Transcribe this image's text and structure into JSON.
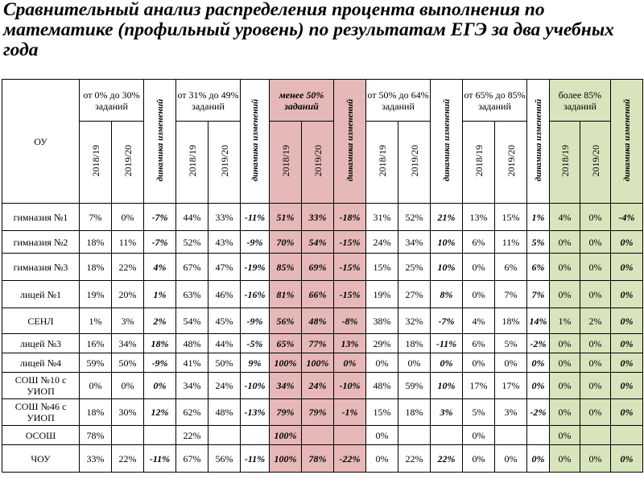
{
  "title": "Сравнительный анализ распределения процента выполнения по математике (профильный уровень) по результатам ЕГЭ за два учебных года",
  "header": {
    "ou": "ОУ",
    "dyn": "динамика изменений",
    "groups": [
      "от 0% до 30% заданий",
      "от 31% до 49% заданий",
      "менее 50% заданий",
      "от 50% до 64% заданий",
      "от 65% до 85% заданий",
      "более 85% заданий"
    ],
    "y1": "2018/19",
    "y2": "2019/20"
  },
  "rows": [
    {
      "name": "гимназия №1",
      "v": [
        "7%",
        "0%",
        "-7%",
        "44%",
        "33%",
        "-11%",
        "51%",
        "33%",
        "-18%",
        "31%",
        "52%",
        "21%",
        "13%",
        "15%",
        "1%",
        "4%",
        "0%",
        "-4%"
      ]
    },
    {
      "name": "гимназия №2",
      "v": [
        "18%",
        "11%",
        "-7%",
        "52%",
        "43%",
        "-9%",
        "70%",
        "54%",
        "-15%",
        "24%",
        "34%",
        "10%",
        "6%",
        "11%",
        "5%",
        "0%",
        "0%",
        "0%"
      ]
    },
    {
      "name": "гимназия №3",
      "v": [
        "18%",
        "22%",
        "4%",
        "67%",
        "47%",
        "-19%",
        "85%",
        "69%",
        "-15%",
        "15%",
        "25%",
        "10%",
        "0%",
        "6%",
        "6%",
        "0%",
        "0%",
        "0%"
      ]
    },
    {
      "name": "лицей №1",
      "v": [
        "19%",
        "20%",
        "1%",
        "63%",
        "46%",
        "-16%",
        "81%",
        "66%",
        "-15%",
        "19%",
        "27%",
        "8%",
        "0%",
        "7%",
        "7%",
        "0%",
        "0%",
        "0%"
      ]
    },
    {
      "name": "СЕНЛ",
      "v": [
        "1%",
        "3%",
        "2%",
        "54%",
        "45%",
        "-9%",
        "56%",
        "48%",
        "-8%",
        "38%",
        "32%",
        "-7%",
        "4%",
        "18%",
        "14%",
        "1%",
        "2%",
        "0%"
      ]
    },
    {
      "name": "лицей №3",
      "v": [
        "16%",
        "34%",
        "18%",
        "48%",
        "44%",
        "-5%",
        "65%",
        "77%",
        "13%",
        "29%",
        "18%",
        "-11%",
        "6%",
        "5%",
        "-2%",
        "0%",
        "0%",
        "0%"
      ]
    },
    {
      "name": "лицей №4",
      "v": [
        "59%",
        "50%",
        "-9%",
        "41%",
        "50%",
        "9%",
        "100%",
        "100%",
        "0%",
        "0%",
        "0%",
        "0%",
        "0%",
        "0%",
        "0%",
        "0%",
        "0%",
        "0%"
      ]
    },
    {
      "name": "СОШ №10 с УИОП",
      "v": [
        "0%",
        "0%",
        "0%",
        "34%",
        "24%",
        "-10%",
        "34%",
        "24%",
        "-10%",
        "48%",
        "59%",
        "10%",
        "17%",
        "17%",
        "0%",
        "0%",
        "0%",
        "0%"
      ]
    },
    {
      "name": "СОШ №46 с УИОП",
      "v": [
        "18%",
        "30%",
        "12%",
        "62%",
        "48%",
        "-13%",
        "79%",
        "79%",
        "-1%",
        "15%",
        "18%",
        "3%",
        "5%",
        "3%",
        "-2%",
        "0%",
        "0%",
        "0%"
      ]
    },
    {
      "name": "ОСОШ",
      "v": [
        "78%",
        "",
        "",
        "22%",
        "",
        "",
        "100%",
        "",
        "",
        "0%",
        "",
        "",
        "0%",
        "",
        "",
        "0%",
        "",
        ""
      ]
    },
    {
      "name": "ЧОУ",
      "v": [
        "33%",
        "22%",
        "-11%",
        "67%",
        "56%",
        "-11%",
        "100%",
        "78%",
        "-22%",
        "0%",
        "22%",
        "22%",
        "0%",
        "0%",
        "0%",
        "0%",
        "0%",
        "0%"
      ]
    }
  ],
  "colors": {
    "less50": "#e6b8b7",
    "more85": "#d7e4bc"
  }
}
